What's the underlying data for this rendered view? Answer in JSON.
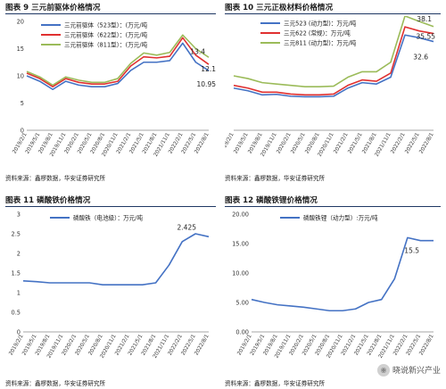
{
  "panels": [
    {
      "id": "p9",
      "title": "图表 9  三元前驱体价格情况",
      "source": "资料来源：鑫椤数据，华安证券研究所"
    },
    {
      "id": "p10",
      "title": "图表 10  三元正极材料价格情况",
      "source": "资料来源：鑫椤数据，华安证券研究所"
    },
    {
      "id": "p11",
      "title": "图表 11  磷酸铁价格情况",
      "source": "资料来源：鑫椤数据，华安证券研究所"
    },
    {
      "id": "p12",
      "title": "图表 12  磷酸铁锂价格情况",
      "source": "资料来源：鑫椤数据，华安证券研究所"
    }
  ],
  "watermark": "晓说新兴产业",
  "chart_data": [
    {
      "type": "line",
      "ylim": [
        0,
        20
      ],
      "yticks": [
        "0",
        "5",
        "10",
        "15",
        "20"
      ],
      "x": [
        "2019/2/1",
        "2019/5/1",
        "2019/8/1",
        "2019/11/1",
        "2020/2/1",
        "2020/5/1",
        "2020/8/1",
        "2020/11/1",
        "2021/2/1",
        "2021/5/1",
        "2021/8/1",
        "2021/11/1",
        "2022/2/1",
        "2022/5/1",
        "2022/8/1"
      ],
      "series": [
        {
          "name": "三元前驱体（523型）：(万元/吨",
          "color": "#4472c4",
          "values": [
            10.0,
            9.0,
            7.5,
            9.0,
            8.3,
            8.0,
            8.0,
            8.6,
            11.0,
            12.5,
            12.5,
            12.8,
            16.0,
            12.5,
            10.95
          ]
        },
        {
          "name": "三元前驱体（622型）：(万元/吨",
          "color": "#e03030",
          "values": [
            10.5,
            9.5,
            8.0,
            9.5,
            8.8,
            8.5,
            8.5,
            9.0,
            11.8,
            13.5,
            13.3,
            13.6,
            17.0,
            13.8,
            12.1
          ]
        },
        {
          "name": "三元前驱体（811型）：(万元/吨",
          "color": "#9bbb59",
          "values": [
            10.8,
            9.8,
            8.3,
            9.8,
            9.2,
            8.8,
            8.8,
            9.5,
            12.3,
            14.2,
            13.8,
            14.3,
            17.5,
            15.0,
            13.4
          ]
        }
      ],
      "annotations": [
        "13.4",
        "12.1",
        "10.95"
      ]
    },
    {
      "type": "line",
      "ylim": [
        0,
        40
      ],
      "yticks": [
        "0",
        "10",
        "20",
        "30",
        "40"
      ],
      "x": [
        "2019/2/1",
        "2019/5/1",
        "2019/8/1",
        "2019/11/1",
        "2020/2/1",
        "2020/5/1",
        "2020/8/1",
        "2020/11/1",
        "2021/2/1",
        "2021/5/1",
        "2021/8/1",
        "2021/11/1",
        "2022/2/1",
        "2022/5/1",
        "2022/8/1"
      ],
      "series": [
        {
          "name": "三元523 (动力型)：万元/吨",
          "color": "#4472c4",
          "values": [
            15.5,
            14.5,
            13.0,
            13.2,
            12.5,
            12.3,
            12.3,
            12.5,
            15.5,
            17.5,
            17.0,
            19.5,
            35.0,
            34.0,
            32.6
          ]
        },
        {
          "name": "三元622 (常规)：万元/吨",
          "color": "#e03030",
          "values": [
            16.5,
            15.5,
            14.0,
            14.0,
            13.3,
            13.0,
            13.0,
            13.3,
            16.5,
            18.5,
            18.0,
            21.0,
            38.0,
            36.5,
            35.55
          ]
        },
        {
          "name": "三元811 (动力型)：万元/吨",
          "color": "#9bbb59",
          "values": [
            20.0,
            19.0,
            17.5,
            17.0,
            16.5,
            16.0,
            16.0,
            16.2,
            19.5,
            21.5,
            21.5,
            25.0,
            42.0,
            40.0,
            38.1
          ]
        }
      ],
      "annotations": [
        "38.1",
        "35.55",
        "32.6"
      ]
    },
    {
      "type": "line",
      "ylim": [
        0,
        3
      ],
      "yticks": [
        "0",
        "0.5",
        "1",
        "1.5",
        "2",
        "2.5",
        "3"
      ],
      "x": [
        "2019/2/1",
        "2019/5/1",
        "2019/8/1",
        "2019/11/1",
        "2020/2/1",
        "2020/5/1",
        "2020/8/1",
        "2020/11/1",
        "2021/2/1",
        "2021/5/1",
        "2021/8/1",
        "2021/11/1",
        "2022/2/1",
        "2022/5/1",
        "2022/8/1"
      ],
      "series": [
        {
          "name": "磷酸铁（电池级）：万元/吨",
          "color": "#4472c4",
          "values": [
            1.3,
            1.28,
            1.25,
            1.25,
            1.25,
            1.25,
            1.2,
            1.2,
            1.2,
            1.2,
            1.25,
            1.7,
            2.3,
            2.5,
            2.425
          ]
        }
      ],
      "annotations": [
        "2.425"
      ]
    },
    {
      "type": "line",
      "ylim": [
        0,
        20
      ],
      "yticks": [
        "0.00",
        "5.00",
        "10.00",
        "15.00",
        "20.00"
      ],
      "x": [
        "2019/2/1",
        "2019/5/1",
        "2019/8/1",
        "2019/11/1",
        "2020/2/1",
        "2020/5/1",
        "2020/8/1",
        "2020/11/1",
        "2021/2/1",
        "2021/5/1",
        "2021/8/1",
        "2021/11/1",
        "2022/2/1",
        "2022/5/1",
        "2022/8/1"
      ],
      "series": [
        {
          "name": "磷酸铁锂（动力型）:万元/吨",
          "color": "#4472c4",
          "values": [
            5.5,
            5.0,
            4.6,
            4.4,
            4.2,
            3.9,
            3.6,
            3.6,
            3.9,
            5.0,
            5.5,
            9.0,
            16.0,
            15.5,
            15.5
          ]
        }
      ],
      "annotations": [
        "15.5"
      ]
    }
  ]
}
